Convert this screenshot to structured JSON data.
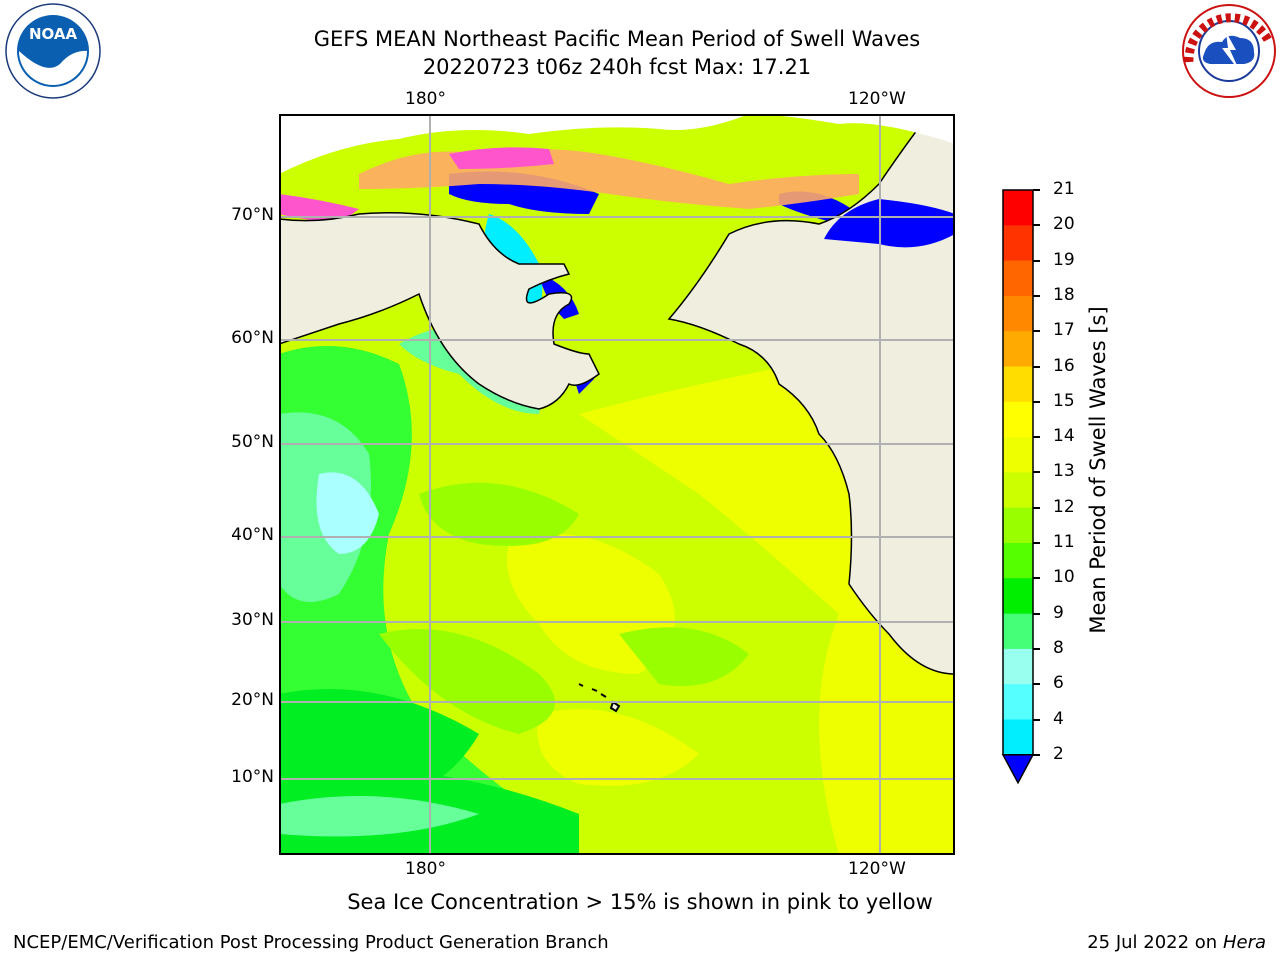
{
  "header": {
    "title_line1": "GEFS MEAN Northeast Pacific Mean Period of Swell Waves",
    "title_line2": "20220723 t06z 240h fcst   Max: 17.21"
  },
  "logos": {
    "left": {
      "name": "NOAA",
      "ring_text": "NATIONAL OCEANIC AND ATMOSPHERIC ADMINISTRATION · U.S. DEPARTMENT OF COMMERCE"
    },
    "right": {
      "name": "NATIONAL WEATHER SERVICE"
    }
  },
  "map": {
    "top_lon_labels": [
      "180°",
      "120°W"
    ],
    "bottom_lon_labels": [
      "180°",
      "120°W"
    ],
    "lat_labels": [
      "70°N",
      "60°N",
      "50°N",
      "40°N",
      "30°N",
      "20°N",
      "10°N"
    ],
    "land_color": "#efeedf",
    "ocean_colors": [
      "#ccff00",
      "#eeff00",
      "#99ff00",
      "#33ff33",
      "#66ff99",
      "#aaffff",
      "#00ffff",
      "#0000ff"
    ],
    "sea_ice_colors": [
      "#ff55cc",
      "#ff88aa",
      "#ffaa66",
      "#ffcc55"
    ]
  },
  "colorbar": {
    "label": "Mean Period of Swell Waves [s]",
    "ticks": [
      "21",
      "20",
      "19",
      "18",
      "17",
      "16",
      "15",
      "14",
      "13",
      "12",
      "11",
      "10",
      "9",
      "8",
      "6",
      "4",
      "2"
    ],
    "colors": [
      "#ff0000",
      "#ff3300",
      "#ff6600",
      "#ff8800",
      "#ffaa00",
      "#ffdd00",
      "#ffff00",
      "#eeff00",
      "#ccff00",
      "#99ff00",
      "#55ff00",
      "#00ee00",
      "#44ff77",
      "#99ffee",
      "#55ffff",
      "#00eeff",
      "#00ccff",
      "#0077ff"
    ],
    "extend_color": "#0000ff"
  },
  "footer": {
    "note": "Sea Ice Concentration > 15% is shown in pink to yellow",
    "left": "NCEP/EMC/Verification Post Processing Product Generation Branch",
    "right_prefix": "25 Jul 2022 on ",
    "right_host": "Hera"
  }
}
